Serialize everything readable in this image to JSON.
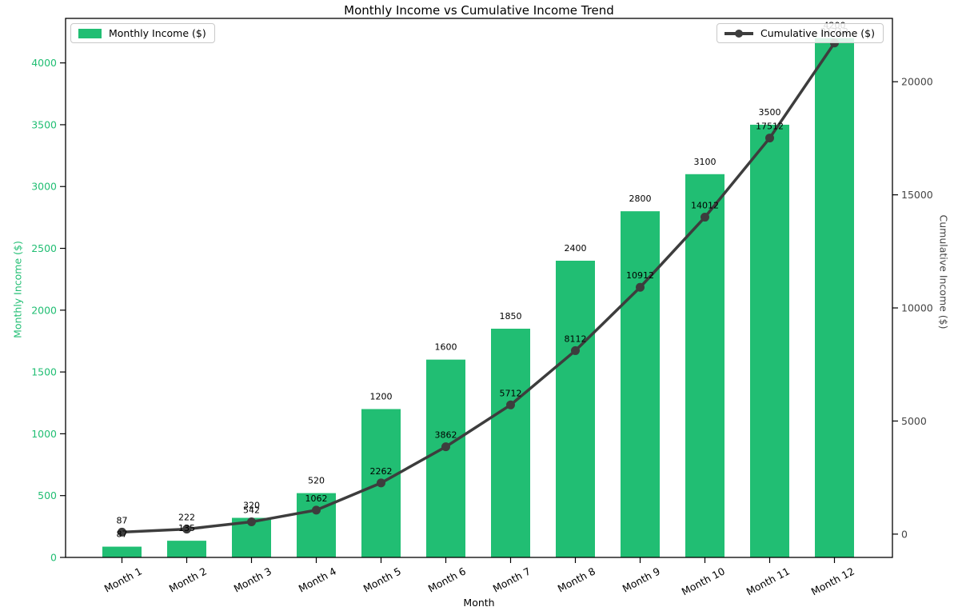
{
  "title": "Monthly Income vs Cumulative Income Trend",
  "xlabel": "Month",
  "legend": {
    "bar_label": "Monthly Income ($)",
    "line_label": "Cumulative Income ($)"
  },
  "left_axis": {
    "label": "Monthly Income ($)",
    "ticks": [
      0,
      500,
      1000,
      1500,
      2000,
      2500,
      3000,
      3500,
      4000
    ],
    "color": "#21be73"
  },
  "right_axis": {
    "label": "Cumulative Income ($)",
    "ticks": [
      0,
      5000,
      10000,
      15000,
      20000
    ],
    "color": "#454545"
  },
  "colors": {
    "bar": "#21be73",
    "line": "#3d3d3d",
    "annotation_text": "#000000",
    "spine": "#000000"
  },
  "chart_data": {
    "type": "bar+line",
    "title": "Monthly Income vs Cumulative Income Trend",
    "xlabel": "Month",
    "ylabel_left": "Monthly Income ($)",
    "ylabel_right": "Cumulative Income ($)",
    "categories": [
      "Month 1",
      "Month 2",
      "Month 3",
      "Month 4",
      "Month 5",
      "Month 6",
      "Month 7",
      "Month 8",
      "Month 9",
      "Month 10",
      "Month 11",
      "Month 12"
    ],
    "series": [
      {
        "name": "Monthly Income ($)",
        "type": "bar",
        "axis": "left",
        "values": [
          87,
          135,
          320,
          520,
          1200,
          1600,
          1850,
          2400,
          2800,
          3100,
          3500,
          4200
        ]
      },
      {
        "name": "Cumulative Income ($)",
        "type": "line",
        "axis": "right",
        "values": [
          87,
          222,
          542,
          1062,
          2262,
          3862,
          5712,
          8112,
          10912,
          14012,
          17512,
          21712
        ]
      }
    ],
    "data_labels": true,
    "grid": false,
    "ylim_left": [
      0,
      4360
    ],
    "ylim_right": [
      -1030,
      22800
    ],
    "legend_positions": [
      "upper left",
      "upper right"
    ]
  }
}
